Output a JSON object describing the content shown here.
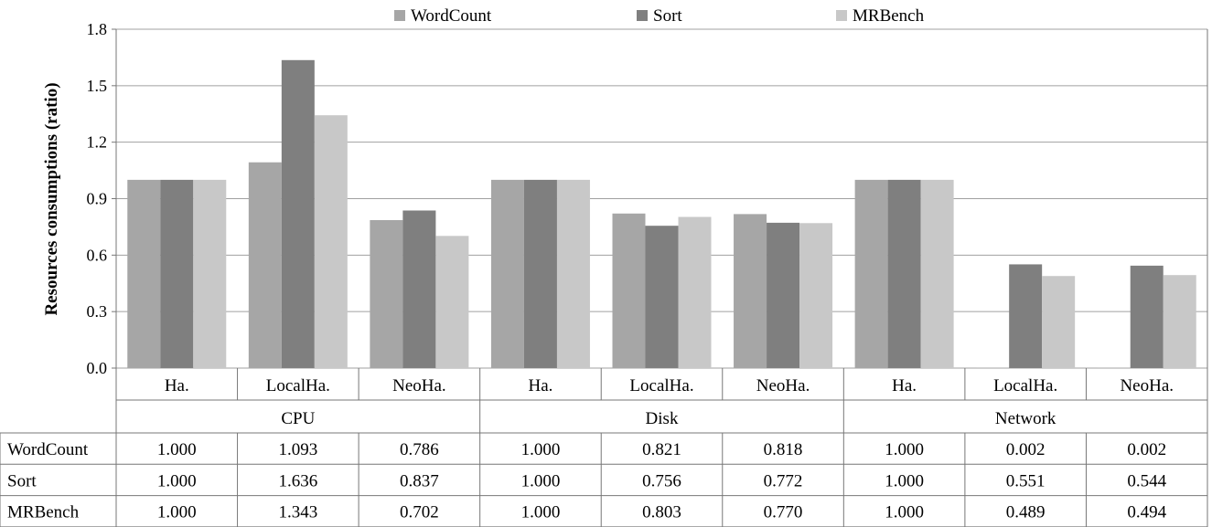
{
  "chart_data": {
    "type": "bar",
    "title": "",
    "ylabel": "Resources consumptions (ratio)",
    "ylim": [
      0,
      1.8
    ],
    "yticks": [
      "0.0",
      "0.3",
      "0.6",
      "0.9",
      "1.2",
      "1.5",
      "1.8"
    ],
    "grid": true,
    "legend_position": "top",
    "groups": [
      {
        "label": "CPU",
        "categories": [
          "Ha.",
          "LocalHa.",
          "NeoHa."
        ]
      },
      {
        "label": "Disk",
        "categories": [
          "Ha.",
          "LocalHa.",
          "NeoHa."
        ]
      },
      {
        "label": "Network",
        "categories": [
          "Ha.",
          "LocalHa.",
          "NeoHa."
        ]
      }
    ],
    "series": [
      {
        "name": "WordCount",
        "color": "#a6a6a6",
        "values": [
          1.0,
          1.093,
          0.786,
          1.0,
          0.821,
          0.818,
          1.0,
          0.002,
          0.002
        ],
        "labels": [
          "1.000",
          "1.093",
          "0.786",
          "1.000",
          "0.821",
          "0.818",
          "1.000",
          "0.002",
          "0.002"
        ]
      },
      {
        "name": "Sort",
        "color": "#7f7f7f",
        "values": [
          1.0,
          1.636,
          0.837,
          1.0,
          0.756,
          0.772,
          1.0,
          0.551,
          0.544
        ],
        "labels": [
          "1.000",
          "1.636",
          "0.837",
          "1.000",
          "0.756",
          "0.772",
          "1.000",
          "0.551",
          "0.544"
        ]
      },
      {
        "name": "MRBench",
        "color": "#c8c8c8",
        "values": [
          1.0,
          1.343,
          0.702,
          1.0,
          0.803,
          0.77,
          1.0,
          0.489,
          0.494
        ],
        "labels": [
          "1.000",
          "1.343",
          "0.702",
          "1.000",
          "0.803",
          "0.770",
          "1.000",
          "0.489",
          "0.494"
        ]
      }
    ]
  }
}
